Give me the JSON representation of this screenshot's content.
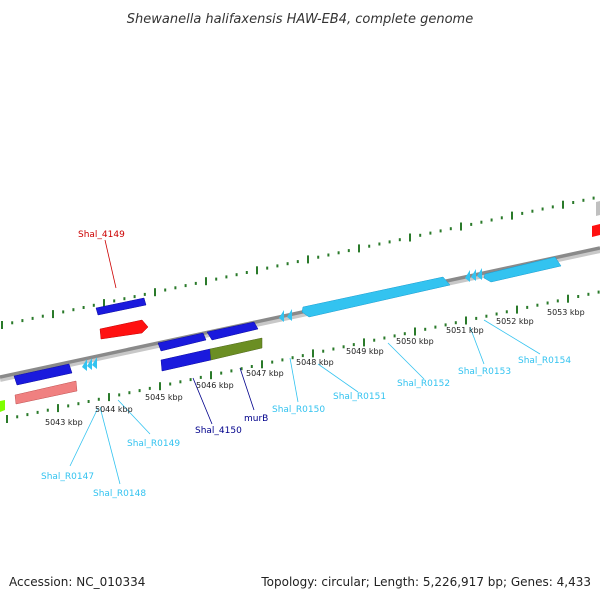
{
  "title": "Shewanella halifaxensis HAW-EB4, complete genome",
  "footer": {
    "accession": "Accession: NC_010334",
    "summary": "Topology: circular; Length: 5,226,917 bp; Genes: 4,433"
  },
  "colors": {
    "backbone": "#8a8a8a",
    "tick": "#2a7a2a",
    "cds": "#1a1add",
    "rna": "#33c3f0",
    "cds_red": "#ff1111",
    "cds_pink": "#f08080",
    "cds_olive": "#6b8e23",
    "cds_grey": "#c0c0c0",
    "cds_lime": "#7fff00",
    "label_red": "#cc0000",
    "label_blue": "#00008b",
    "label_cyan": "#33c3f0"
  },
  "kbp_labels": [
    "5043 kbp",
    "5044 kbp",
    "5045 kbp",
    "5046 kbp",
    "5047 kbp",
    "5048 kbp",
    "5049 kbp",
    "5050 kbp",
    "5051 kbp",
    "5052 kbp",
    "5053 kbp"
  ],
  "gene_labels": [
    {
      "id": "shal-4149",
      "text": "Shal_4149",
      "color": "label_red"
    },
    {
      "id": "shal-4150",
      "text": "Shal_4150",
      "color": "label_blue"
    },
    {
      "id": "murb",
      "text": "murB",
      "color": "label_blue"
    },
    {
      "id": "shal-r0147",
      "text": "Shal_R0147",
      "color": "label_cyan"
    },
    {
      "id": "shal-r0148",
      "text": "Shal_R0148",
      "color": "label_cyan"
    },
    {
      "id": "shal-r0149",
      "text": "Shal_R0149",
      "color": "label_cyan"
    },
    {
      "id": "shal-r0150",
      "text": "Shal_R0150",
      "color": "label_cyan"
    },
    {
      "id": "shal-r0151",
      "text": "Shal_R0151",
      "color": "label_cyan"
    },
    {
      "id": "shal-r0152",
      "text": "Shal_R0152",
      "color": "label_cyan"
    },
    {
      "id": "shal-r0153",
      "text": "Shal_R0153",
      "color": "label_cyan"
    },
    {
      "id": "shal-r0154",
      "text": "Shal_R0154",
      "color": "label_cyan"
    }
  ]
}
